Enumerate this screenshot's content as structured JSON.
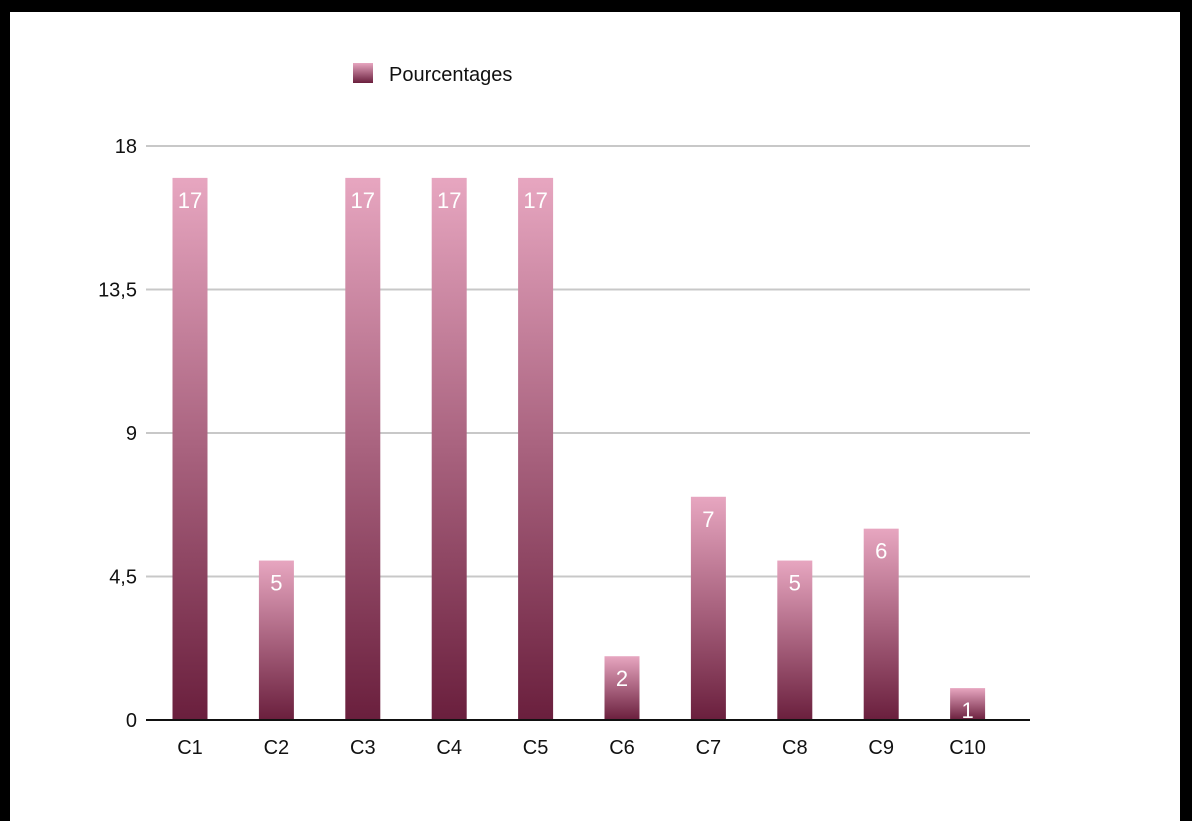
{
  "chart_data": {
    "type": "bar",
    "categories": [
      "C1",
      "C2",
      "C3",
      "C4",
      "C5",
      "C6",
      "C7",
      "C8",
      "C9",
      "C10"
    ],
    "series": [
      {
        "name": "Pourcentages",
        "values": [
          17,
          5,
          17,
          17,
          17,
          2,
          7,
          5,
          6,
          1
        ]
      }
    ],
    "ylim": [
      0,
      18
    ],
    "yticks": [
      "0",
      "4,5",
      "9",
      "13,5",
      "18"
    ],
    "ytick_values": [
      0,
      4.5,
      9,
      13.5,
      18
    ],
    "grid": true,
    "legend": "top-left",
    "data_labels": true,
    "colors": {
      "bar_top": "#e7a6c0",
      "bar_bottom": "#6a1f3d",
      "grid": "#c8c8c8",
      "axis": "#111111"
    }
  }
}
